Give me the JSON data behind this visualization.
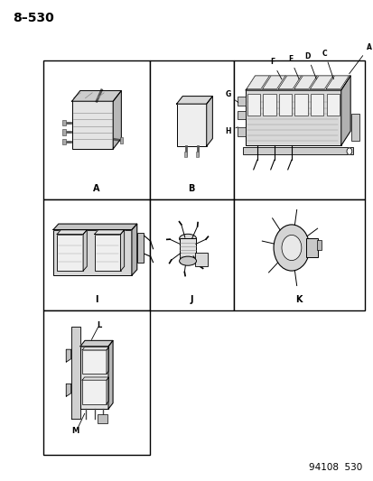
{
  "page_number": "8–530",
  "footer": "94108  530",
  "bg": "#ffffff",
  "lc": "#000000",
  "grid": {
    "L": 0.115,
    "R": 0.975,
    "GT": 0.875,
    "GB": 0.055,
    "R1B": 0.585,
    "R2B": 0.355,
    "C1": 0.4,
    "C2": 0.625
  },
  "labels": {
    "A_cell": "A",
    "B_cell": "B",
    "I_cell": "I",
    "J_cell": "J",
    "K_cell": "K",
    "L_lbl": "L",
    "M_lbl": "M"
  },
  "label_fontsize": 7,
  "page_fontsize": 10,
  "footer_fontsize": 7.5
}
